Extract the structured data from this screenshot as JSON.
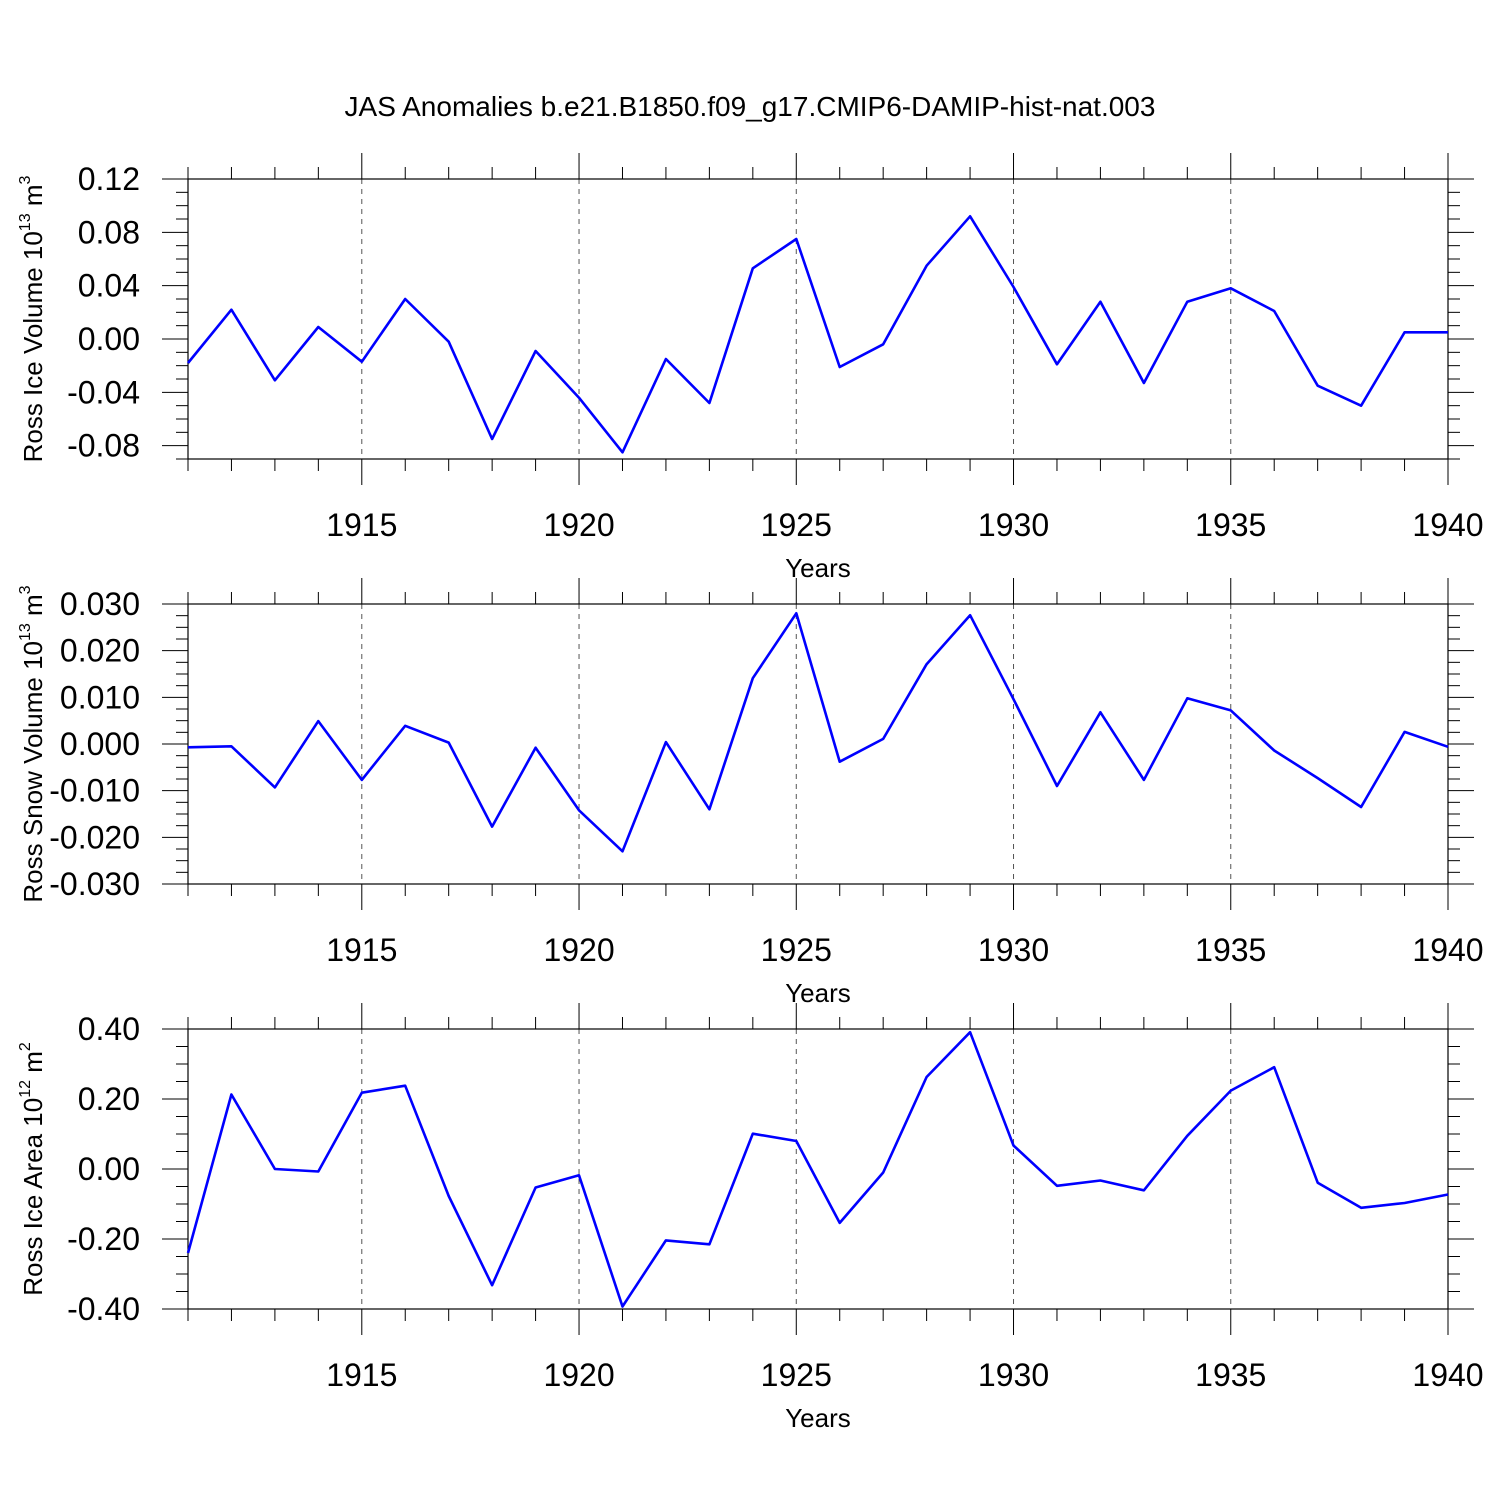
{
  "title": "JAS Anomalies b.e21.B1850.f09_g17.CMIP6-DAMIP-hist-nat.003",
  "line_color": "#0000ff",
  "chart_data": [
    {
      "type": "line",
      "xlabel": "Years",
      "ylabel_text": "Ross Ice Volume 10",
      "ylabel_exp": "13",
      "ylabel_unit": " m",
      "ylabel_unit_exp": "3",
      "xlim": [
        1911,
        1940
      ],
      "ylim": [
        -0.09,
        0.12
      ],
      "x_ticks": [
        1915,
        1920,
        1925,
        1930,
        1935,
        1940
      ],
      "y_ticks": [
        -0.08,
        -0.04,
        0.0,
        0.04,
        0.08,
        0.12
      ],
      "y_tick_labels": [
        "-0.08",
        "-0.04",
        "0.00",
        "0.04",
        "0.08",
        "0.12"
      ],
      "grid": "vertical dashed at major x ticks",
      "x": [
        1911,
        1912,
        1913,
        1914,
        1915,
        1916,
        1917,
        1918,
        1919,
        1920,
        1921,
        1922,
        1923,
        1924,
        1925,
        1926,
        1927,
        1928,
        1929,
        1930,
        1931,
        1932,
        1933,
        1934,
        1935,
        1936,
        1937,
        1938,
        1939,
        1940
      ],
      "values": [
        -0.018,
        0.022,
        -0.031,
        0.009,
        -0.017,
        0.03,
        -0.002,
        -0.075,
        -0.009,
        -0.044,
        -0.085,
        -0.015,
        -0.048,
        0.053,
        0.075,
        -0.021,
        -0.004,
        0.055,
        0.092,
        0.039,
        -0.019,
        0.028,
        -0.033,
        0.028,
        0.038,
        0.021,
        -0.035,
        -0.05,
        0.005,
        0.005
      ]
    },
    {
      "type": "line",
      "xlabel": "Years",
      "ylabel_text": "Ross Snow Volume 10",
      "ylabel_exp": "13",
      "ylabel_unit": " m",
      "ylabel_unit_exp": "3",
      "xlim": [
        1911,
        1940
      ],
      "ylim": [
        -0.03,
        0.03
      ],
      "x_ticks": [
        1915,
        1920,
        1925,
        1930,
        1935,
        1940
      ],
      "y_ticks": [
        -0.03,
        -0.02,
        -0.01,
        0.0,
        0.01,
        0.02,
        0.03
      ],
      "y_tick_labels": [
        "-0.030",
        "-0.020",
        "-0.010",
        "0.000",
        "0.010",
        "0.020",
        "0.030"
      ],
      "grid": "vertical dashed at major x ticks",
      "x": [
        1911,
        1912,
        1913,
        1914,
        1915,
        1916,
        1917,
        1918,
        1919,
        1920,
        1921,
        1922,
        1923,
        1924,
        1925,
        1926,
        1927,
        1928,
        1929,
        1930,
        1931,
        1932,
        1933,
        1934,
        1935,
        1936,
        1937,
        1938,
        1939,
        1940
      ],
      "values": [
        -0.0007,
        -0.0005,
        -0.0093,
        0.0049,
        -0.0077,
        0.0039,
        0.0003,
        -0.0177,
        -0.0008,
        -0.0142,
        -0.023,
        0.0004,
        -0.014,
        0.0141,
        0.028,
        -0.0038,
        0.0011,
        0.0171,
        0.0276,
        0.0096,
        -0.009,
        0.0068,
        -0.0077,
        0.0098,
        0.0072,
        -0.0014,
        -0.0073,
        -0.0135,
        0.0026,
        -0.0006
      ]
    },
    {
      "type": "line",
      "xlabel": "Years",
      "ylabel_text": "Ross Ice Area 10",
      "ylabel_exp": "12",
      "ylabel_unit": " m",
      "ylabel_unit_exp": "2",
      "xlim": [
        1911,
        1940
      ],
      "ylim": [
        -0.4,
        0.4
      ],
      "x_ticks": [
        1915,
        1920,
        1925,
        1930,
        1935,
        1940
      ],
      "y_ticks": [
        -0.4,
        -0.2,
        0.0,
        0.2,
        0.4
      ],
      "y_tick_labels": [
        "-0.40",
        "-0.20",
        "0.00",
        "0.20",
        "0.40"
      ],
      "grid": "vertical dashed at major x ticks",
      "x": [
        1911,
        1912,
        1913,
        1914,
        1915,
        1916,
        1917,
        1918,
        1919,
        1920,
        1921,
        1922,
        1923,
        1924,
        1925,
        1926,
        1927,
        1928,
        1929,
        1930,
        1931,
        1932,
        1933,
        1934,
        1935,
        1936,
        1937,
        1938,
        1939,
        1940
      ],
      "values": [
        -0.24,
        0.213,
        0.0,
        -0.007,
        0.218,
        0.238,
        -0.077,
        -0.332,
        -0.053,
        -0.018,
        -0.393,
        -0.204,
        -0.215,
        0.101,
        0.08,
        -0.154,
        -0.01,
        0.263,
        0.391,
        0.067,
        -0.048,
        -0.033,
        -0.061,
        0.095,
        0.224,
        0.291,
        -0.039,
        -0.111,
        -0.097,
        -0.073
      ]
    }
  ]
}
